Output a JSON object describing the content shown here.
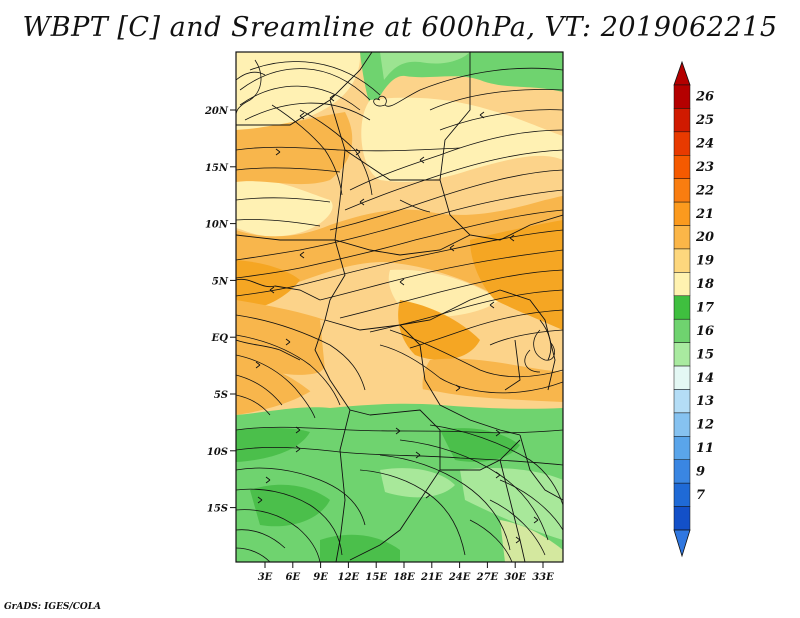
{
  "title": "WBPT [C] and Sreamline at 600hPa, VT: 2019062215",
  "credit": "GrADS: IGES/COLA",
  "map": {
    "lat_ticks": [
      "20N",
      "15N",
      "10N",
      "5N",
      "EQ",
      "5S",
      "10S",
      "15S"
    ],
    "lon_ticks": [
      "3E",
      "6E",
      "9E",
      "12E",
      "15E",
      "18E",
      "21E",
      "24E",
      "27E",
      "30E",
      "33E"
    ],
    "fill_colors": {
      "orange_dark": "#f5a623",
      "orange": "#f8b64c",
      "light_orange": "#fcd38a",
      "pale_yellow": "#fff1b3",
      "green_dark": "#4bbf4b",
      "green": "#6fd36f",
      "green_light": "#a8e89a"
    }
  },
  "colorbar": {
    "levels": [
      "26",
      "25",
      "24",
      "23",
      "22",
      "21",
      "20",
      "19",
      "18",
      "17",
      "16",
      "15",
      "14",
      "13",
      "12",
      "11",
      "9",
      "7"
    ],
    "colors": [
      "#b40000",
      "#d01a00",
      "#e83a00",
      "#f55a00",
      "#f97d10",
      "#fb9a1e",
      "#fbb648",
      "#fdd77d",
      "#fff2b0",
      "#3fbf3f",
      "#6fd36f",
      "#a9eaa0",
      "#e4f8f4",
      "#b4ddf6",
      "#86c2f0",
      "#5aa5ea",
      "#3a86e2",
      "#1f6ad6",
      "#1350c8"
    ],
    "top_arrow_color": "#b40000",
    "bottom_arrow_color": "#2f77e0"
  }
}
